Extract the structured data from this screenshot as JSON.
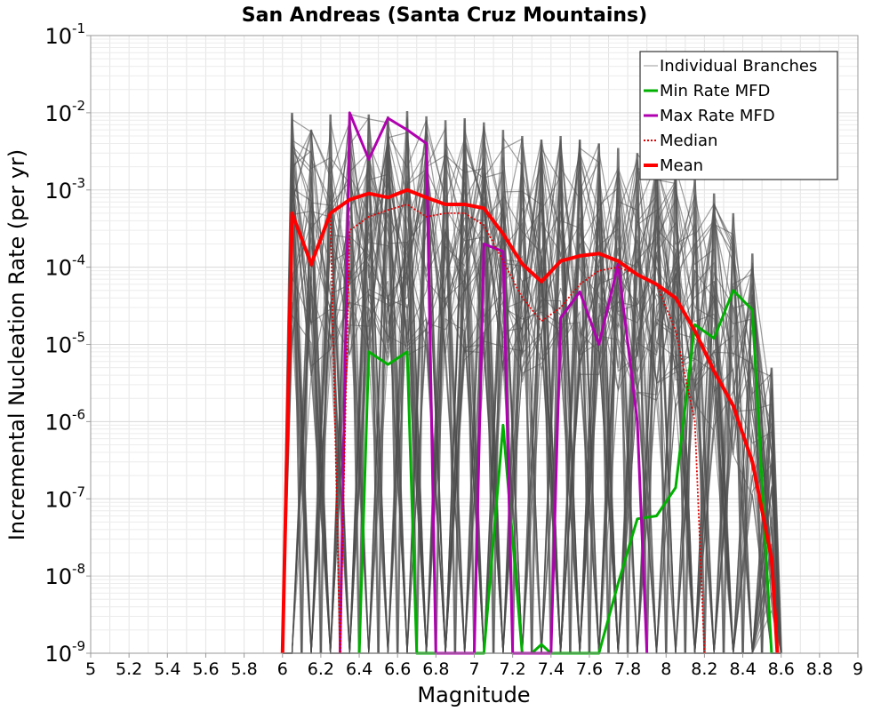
{
  "chart_data": {
    "type": "line",
    "title": "San Andreas (Santa Cruz Mountains)",
    "xlabel": "Magnitude",
    "ylabel": "Incremental Nucleation Rate (per yr)",
    "xlim": [
      5,
      9
    ],
    "ylim": [
      1e-09,
      0.1
    ],
    "yscale": "log",
    "grid": true,
    "legend_position": "top-right",
    "x_ticks": [
      "5",
      "5.2",
      "5.4",
      "5.6",
      "5.8",
      "6",
      "6.2",
      "6.4",
      "6.6",
      "6.8",
      "7",
      "7.2",
      "7.4",
      "7.6",
      "7.8",
      "8",
      "8.2",
      "8.4",
      "8.6",
      "8.8",
      "9"
    ],
    "y_ticks": [
      {
        "base": "10",
        "exp": "-9",
        "value": 1e-09
      },
      {
        "base": "10",
        "exp": "-8",
        "value": 1e-08
      },
      {
        "base": "10",
        "exp": "-7",
        "value": 1e-07
      },
      {
        "base": "10",
        "exp": "-6",
        "value": 1e-06
      },
      {
        "base": "10",
        "exp": "-5",
        "value": 1e-05
      },
      {
        "base": "10",
        "exp": "-4",
        "value": 0.0001
      },
      {
        "base": "10",
        "exp": "-3",
        "value": 0.001
      },
      {
        "base": "10",
        "exp": "-2",
        "value": 0.01
      },
      {
        "base": "10",
        "exp": "-1",
        "value": 0.1
      }
    ],
    "legend": [
      {
        "label": "Individual Branches",
        "color": "#9a9a9a",
        "style": "thin"
      },
      {
        "label": "Min Rate MFD",
        "color": "#00b000",
        "style": "solid"
      },
      {
        "label": "Max Rate MFD",
        "color": "#b000b0",
        "style": "solid"
      },
      {
        "label": "Median",
        "color": "#e00000",
        "style": "dotted"
      },
      {
        "label": "Mean",
        "color": "#ff0000",
        "style": "thick"
      }
    ],
    "branch_envelope": {
      "x": [
        6.05,
        6.15,
        6.25,
        6.35,
        6.45,
        6.55,
        6.65,
        6.75,
        6.85,
        6.95,
        7.05,
        7.15,
        7.25,
        7.35,
        7.45,
        7.55,
        7.65,
        7.75,
        7.85,
        7.95,
        8.05,
        8.15,
        8.25,
        8.35,
        8.45,
        8.55
      ],
      "upper": [
        0.01,
        0.006,
        0.0095,
        0.01,
        0.0095,
        0.009,
        0.0105,
        0.009,
        0.008,
        0.0085,
        0.0075,
        0.006,
        0.005,
        0.0045,
        0.005,
        0.0045,
        0.004,
        0.0035,
        0.003,
        0.0025,
        0.002,
        0.0015,
        0.0009,
        0.0005,
        0.00015,
        5e-06
      ]
    },
    "series": [
      {
        "name": "Min Rate MFD",
        "color": "#00b000",
        "x": [
          6.4,
          6.45,
          6.55,
          6.65,
          6.7,
          7.05,
          7.15,
          7.25,
          7.3,
          7.35,
          7.4,
          7.65,
          7.75,
          7.85,
          7.95,
          8.05,
          8.15,
          8.25,
          8.35,
          8.45,
          8.55
        ],
        "y": [
          1e-09,
          8e-06,
          5.5e-06,
          8e-06,
          1e-09,
          1e-09,
          9e-07,
          1e-09,
          1e-09,
          1.3e-09,
          1e-09,
          1e-09,
          8e-09,
          5.5e-08,
          6e-08,
          1.4e-07,
          1.8e-05,
          1.2e-05,
          5e-05,
          2.8e-05,
          1e-09
        ]
      },
      {
        "name": "Max Rate MFD",
        "color": "#b000b0",
        "x": [
          6.3,
          6.35,
          6.45,
          6.55,
          6.65,
          6.75,
          6.8,
          7.0,
          7.05,
          7.15,
          7.2,
          7.4,
          7.45,
          7.55,
          7.65,
          7.75,
          7.85,
          7.9
        ],
        "y": [
          1e-09,
          0.01,
          0.0025,
          0.0085,
          0.006,
          0.004,
          1e-09,
          1e-09,
          0.0002,
          0.00016,
          1e-09,
          1e-09,
          2.2e-05,
          4.8e-05,
          1e-05,
          0.00011,
          1e-06,
          1e-09
        ]
      },
      {
        "name": "Median",
        "color": "#e00000",
        "dashed": true,
        "x": [
          6.0,
          6.05,
          6.15,
          6.25,
          6.3,
          6.35,
          6.45,
          6.55,
          6.65,
          6.75,
          6.85,
          6.95,
          7.05,
          7.15,
          7.25,
          7.35,
          7.45,
          7.55,
          7.65,
          7.75,
          7.85,
          7.95,
          8.05,
          8.15,
          8.2
        ],
        "y": [
          1e-09,
          0.0005,
          0.0001,
          0.0005,
          1e-09,
          0.0003,
          0.00045,
          0.00055,
          0.00065,
          0.00045,
          0.0005,
          0.0005,
          0.00035,
          0.00012,
          4e-05,
          2e-05,
          3e-05,
          6e-05,
          9e-05,
          0.0001,
          8e-05,
          6e-05,
          1.5e-05,
          1e-06,
          1e-09
        ]
      },
      {
        "name": "Mean",
        "color": "#ff0000",
        "thick": true,
        "x": [
          6.0,
          6.05,
          6.15,
          6.25,
          6.35,
          6.45,
          6.55,
          6.65,
          6.75,
          6.85,
          6.95,
          7.05,
          7.15,
          7.25,
          7.35,
          7.45,
          7.55,
          7.65,
          7.75,
          7.85,
          7.95,
          8.05,
          8.15,
          8.25,
          8.35,
          8.45,
          8.55,
          8.58
        ],
        "y": [
          1e-09,
          0.0005,
          0.00011,
          0.0005,
          0.00075,
          0.0009,
          0.0008,
          0.001,
          0.0008,
          0.00065,
          0.00065,
          0.00058,
          0.00027,
          0.00011,
          6.5e-05,
          0.00012,
          0.00014,
          0.00015,
          0.00012,
          8e-05,
          6e-05,
          4e-05,
          1.5e-05,
          4.5e-06,
          1.6e-06,
          3e-07,
          1.7e-08,
          1e-09
        ]
      }
    ]
  }
}
